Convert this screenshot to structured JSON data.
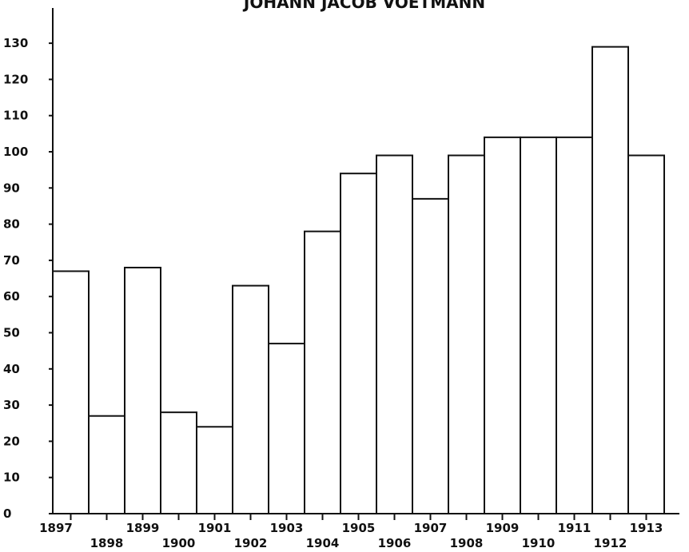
{
  "chart_data": {
    "type": "bar",
    "title": "JOHANN JACOB VOETMANN",
    "xlabel": "",
    "ylabel": "",
    "categories": [
      "1897",
      "1898",
      "1899",
      "1900",
      "1901",
      "1902",
      "1903",
      "1904",
      "1905",
      "1906",
      "1907",
      "1908",
      "1909",
      "1910",
      "1911",
      "1912",
      "1913"
    ],
    "values": [
      67,
      27,
      68,
      28,
      24,
      63,
      47,
      78,
      94,
      99,
      87,
      99,
      104,
      104,
      104,
      129,
      99
    ],
    "ylim": [
      0,
      135
    ],
    "yticks": [
      0,
      10,
      20,
      30,
      40,
      50,
      60,
      70,
      80,
      90,
      100,
      110,
      120,
      130
    ],
    "grid": false,
    "colors": {
      "bar_fill": "#ffffff",
      "bar_stroke": "#111111"
    }
  }
}
